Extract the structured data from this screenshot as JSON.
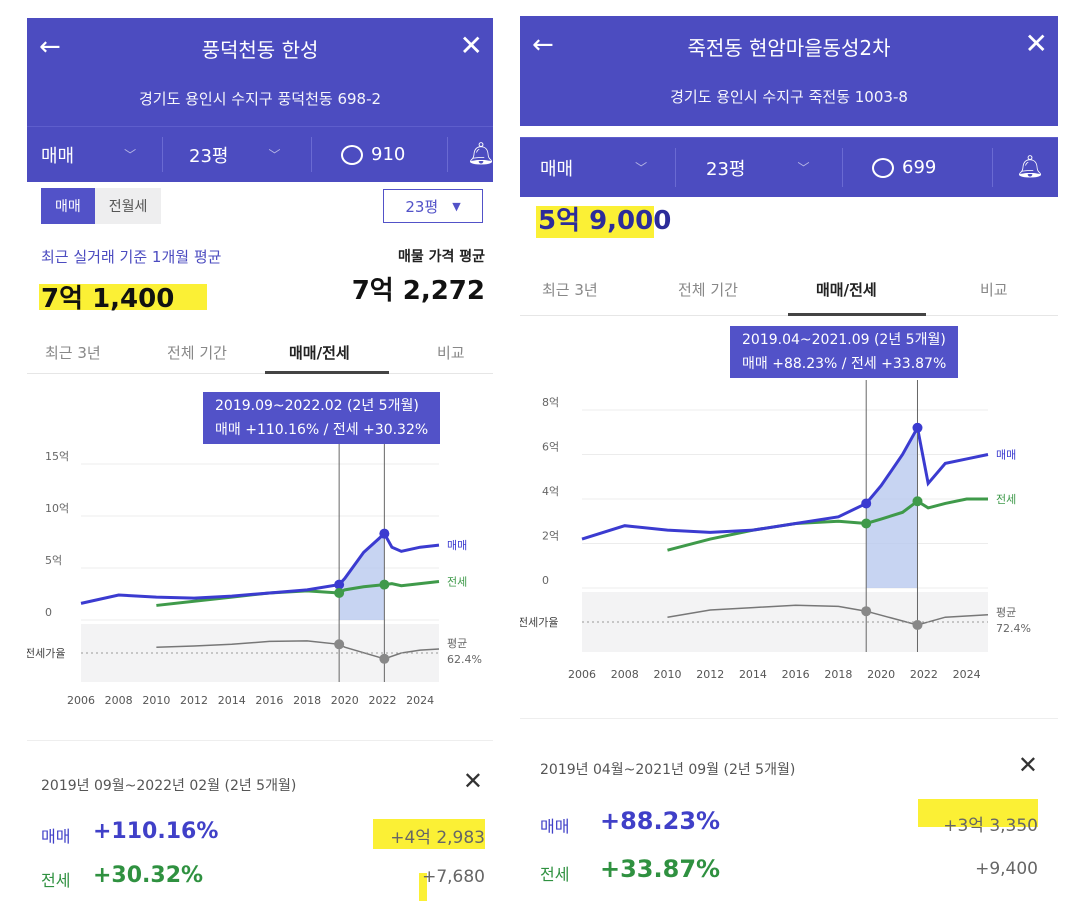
{
  "left": {
    "title": "풍덕천동 한성",
    "address": "경기도 용인시 수지구 풍덕천동 698-2",
    "deal_type": "매매",
    "size": "23평",
    "comments": "910",
    "toggle": [
      "매매",
      "전월세"
    ],
    "size_select": "23평",
    "recent_label": "최근 실거래 기준 1개월 평균",
    "recent_price": "7억 1,400",
    "listing_label": "매물 가격 평균",
    "listing_price": "7억 2,272",
    "tabs": [
      "최근 3년",
      "전체 기간",
      "매매/전세",
      "비교"
    ],
    "tooltip_line1": "2019.09~2022.02 (2년 5개월)",
    "tooltip_line2": "매매 +110.16%  /  전세 +30.32%",
    "series_sale": "매매",
    "series_jeonse": "전세",
    "ratio_label": "전세가율",
    "avg_label": "평균",
    "avg_value": "62.4%",
    "summary_range": "2019년 09월~2022년 02월 (2년 5개월)",
    "sale_label": "매매",
    "sale_pct": "+110.16%",
    "sale_amt": "+4억 2,983",
    "jeonse_label": "전세",
    "jeonse_pct": "+30.32%",
    "jeonse_amt": "+7,680"
  },
  "right": {
    "title": "죽전동 현암마을동성2차",
    "address": "경기도 용인시 수지구 죽전동 1003-8",
    "deal_type": "매매",
    "size": "23평",
    "comments": "699",
    "price": "5억 9,000",
    "tabs": [
      "최근 3년",
      "전체 기간",
      "매매/전세",
      "비교"
    ],
    "tooltip_line1": "2019.04~2021.09 (2년 5개월)",
    "tooltip_line2": "매매 +88.23%  /  전세 +33.87%",
    "series_sale": "매매",
    "series_jeonse": "전세",
    "ratio_label": "전세가율",
    "avg_label": "평균",
    "avg_value": "72.4%",
    "summary_range": "2019년 04월~2021년 09월 (2년 5개월)",
    "sale_label": "매매",
    "sale_pct": "+88.23%",
    "sale_amt": "+3억 3,350",
    "jeonse_label": "전세",
    "jeonse_pct": "+33.87%",
    "jeonse_amt": "+9,400"
  },
  "chart_data": [
    {
      "type": "line",
      "x": [
        2006,
        2008,
        2010,
        2012,
        2014,
        2016,
        2018,
        2019.7,
        2020,
        2021,
        2022.1,
        2022.5,
        2023,
        2024,
        2025
      ],
      "series": [
        {
          "name": "매매",
          "values": [
            1.6,
            2.4,
            2.2,
            2.1,
            2.3,
            2.6,
            2.9,
            3.4,
            4.0,
            6.5,
            8.3,
            7.0,
            6.6,
            7.0,
            7.2
          ]
        },
        {
          "name": "전세",
          "values": [
            null,
            null,
            1.4,
            1.8,
            2.2,
            2.6,
            2.8,
            2.6,
            2.9,
            3.2,
            3.4,
            3.5,
            3.3,
            3.5,
            3.7
          ]
        }
      ],
      "ratio": {
        "x": [
          2010,
          2012,
          2014,
          2016,
          2018,
          2019.7,
          2020,
          2022.1,
          2023,
          2024,
          2025
        ],
        "values": [
          60,
          62,
          65,
          70,
          71,
          65,
          60,
          40,
          50,
          55,
          57
        ]
      },
      "x_ticks": [
        "2006",
        "2008",
        "2010",
        "2012",
        "2014",
        "2016",
        "2018",
        "2020",
        "2022",
        "2024"
      ],
      "y_ticks": [
        "15억",
        "10억",
        "5억",
        "0"
      ],
      "ylim": [
        0,
        15
      ]
    },
    {
      "type": "line",
      "x": [
        2006,
        2008,
        2010,
        2012,
        2014,
        2016,
        2018,
        2019.3,
        2020,
        2021,
        2021.7,
        2022.2,
        2023,
        2024,
        2025
      ],
      "series": [
        {
          "name": "매매",
          "values": [
            2.2,
            2.8,
            2.6,
            2.5,
            2.6,
            2.9,
            3.2,
            3.8,
            4.6,
            6.0,
            7.2,
            4.7,
            5.6,
            5.8,
            6.0
          ]
        },
        {
          "name": "전세",
          "values": [
            null,
            null,
            1.7,
            2.2,
            2.6,
            2.9,
            3.0,
            2.9,
            3.1,
            3.4,
            3.9,
            3.6,
            3.8,
            4.0,
            4.0
          ]
        }
      ],
      "ratio": {
        "x": [
          2010,
          2012,
          2014,
          2016,
          2018,
          2019.3,
          2021.7,
          2023,
          2025
        ],
        "values": [
          58,
          70,
          74,
          78,
          76,
          68,
          45,
          58,
          62
        ]
      },
      "x_ticks": [
        "2006",
        "2008",
        "2010",
        "2012",
        "2014",
        "2016",
        "2018",
        "2020",
        "2022",
        "2024"
      ],
      "y_ticks": [
        "8억",
        "6억",
        "4억",
        "2억",
        "0"
      ],
      "ylim": [
        0,
        8
      ]
    }
  ]
}
